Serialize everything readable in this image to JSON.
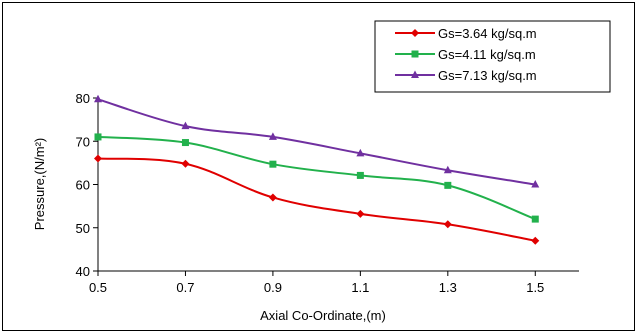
{
  "chart_data": {
    "type": "line",
    "title": "",
    "xlabel": "Axial Co-Ordinate,(m)",
    "ylabel": "Pressure,(N/m²)",
    "x": [
      0.5,
      0.7,
      0.9,
      1.1,
      1.3,
      1.5
    ],
    "xlim": [
      0.5,
      1.6
    ],
    "ylim": [
      40,
      80
    ],
    "xticks": [
      "0.5",
      "0.7",
      "0.9",
      "1.1",
      "1.3",
      "1.5"
    ],
    "yticks": [
      "40",
      "50",
      "60",
      "70",
      "80"
    ],
    "grid": false,
    "legend_position": "top-right",
    "series": [
      {
        "name": "Gs=3.64 kg/sq.m",
        "color": "#e00000",
        "marker": "diamond",
        "values": [
          66,
          64.8,
          57,
          53.2,
          50.8,
          47
        ]
      },
      {
        "name": "Gs=4.11 kg/sq.m",
        "color": "#22b14c",
        "marker": "square",
        "values": [
          71,
          69.7,
          64.7,
          62.1,
          59.8,
          52
        ]
      },
      {
        "name": "Gs=7.13 kg/sq.m",
        "color": "#7030a0",
        "marker": "triangle",
        "values": [
          79.7,
          73.5,
          71,
          67.2,
          63.3,
          60
        ]
      }
    ]
  }
}
